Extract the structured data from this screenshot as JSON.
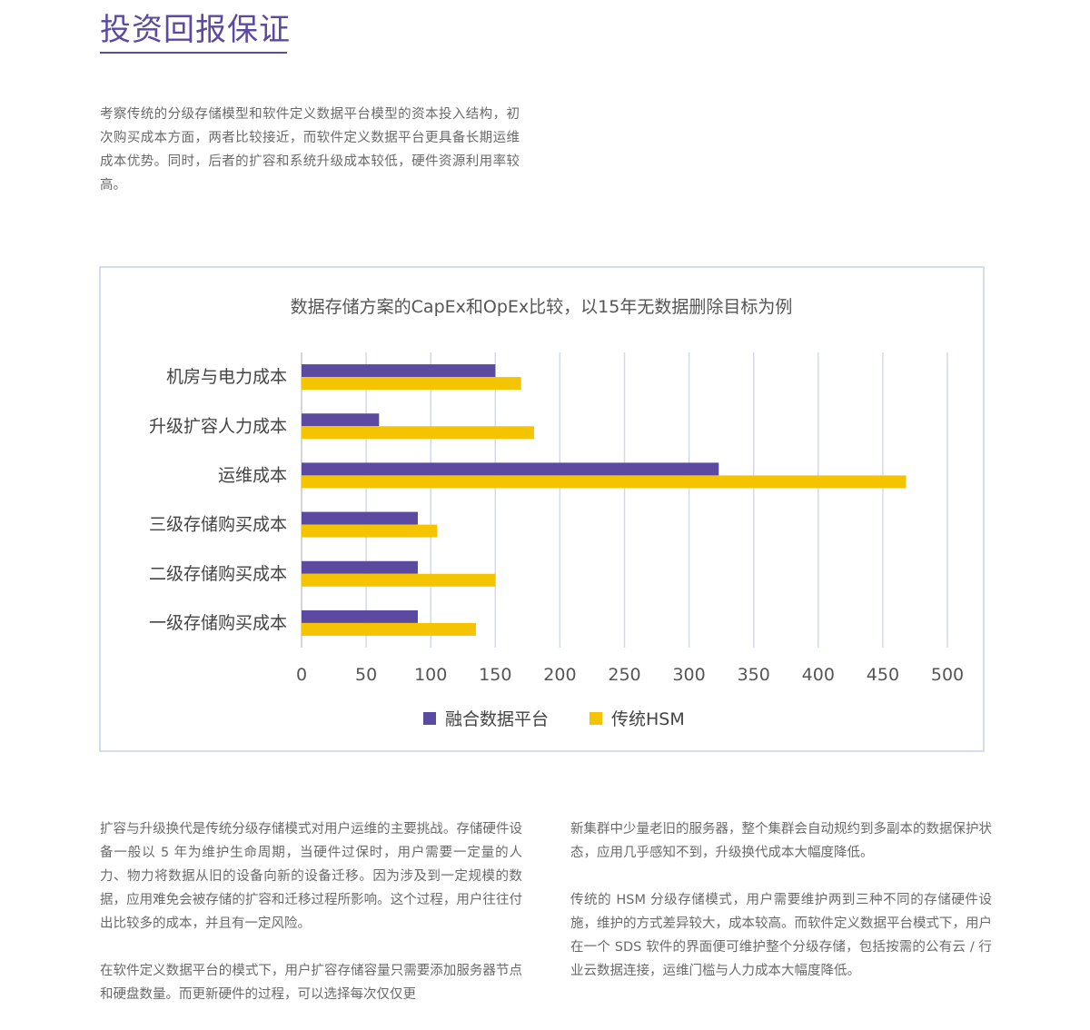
{
  "page": {
    "title": "投资回报保证",
    "intro": "考察传统的分级存储模型和软件定义数据平台模型的资本投入结构，初次购买成本方面，两者比较接近，而软件定义数据平台更具备长期运维成本优势。同时，后者的扩容和系统升级成本较低，硬件资源利用率较高。"
  },
  "chart_data": {
    "type": "bar",
    "orientation": "horizontal",
    "title": "数据存储方案的CapEx和OpEx比较，以15年无数据删除目标为例",
    "categories": [
      "机房与电力成本",
      "升级扩容人力成本",
      "运维成本",
      "三级存储购买成本",
      "二级存储购买成本",
      "一级存储购买成本"
    ],
    "series": [
      {
        "name": "融合数据平台",
        "color": "#5b4a9f",
        "values": [
          150,
          60,
          323,
          90,
          90,
          90
        ]
      },
      {
        "name": "传统HSM",
        "color": "#f5c400",
        "values": [
          170,
          180,
          468,
          105,
          150,
          135
        ]
      }
    ],
    "xlim": [
      0,
      500
    ],
    "xticks": [
      0,
      50,
      100,
      150,
      200,
      250,
      300,
      350,
      400,
      450,
      500
    ],
    "grid": true,
    "legend_position": "bottom"
  },
  "body": {
    "left_paragraphs": [
      "扩容与升级换代是传统分级存储模式对用户运维的主要挑战。存储硬件设备一般以 5 年为维护生命周期，当硬件过保时，用户需要一定量的人力、物力将数据从旧的设备向新的设备迁移。因为涉及到一定规模的数据，应用难免会被存储的扩容和迁移过程所影响。这个过程，用户往往付出比较多的成本，并且有一定风险。",
      "在软件定义数据平台的模式下，用户扩容存储容量只需要添加服务器节点和硬盘数量。而更新硬件的过程，可以选择每次仅仅更"
    ],
    "right_paragraphs": [
      "新集群中少量老旧的服务器，整个集群会自动规约到多副本的数据保护状态，应用几乎感知不到，升级换代成本大幅度降低。",
      "传统的 HSM 分级存储模式，用户需要维护两到三种不同的存储硬件设施，维护的方式差异较大，成本较高。而软件定义数据平台模式下，用户在一个 SDS 软件的界面便可维护整个分级存储，包括按需的公有云 / 行业云数据连接，运维门槛与人力成本大幅度降低。"
    ]
  }
}
